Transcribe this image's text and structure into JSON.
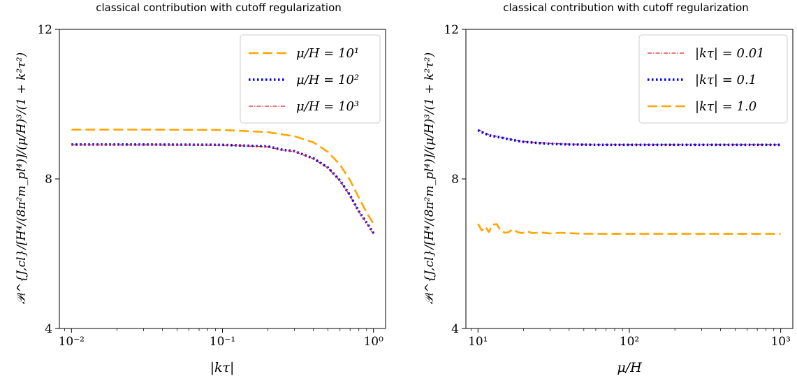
{
  "chart_data": [
    {
      "type": "line",
      "title": "classical contribution with cutoff regularization",
      "xlabel": "|kτ|",
      "ylabel": "𝒫ₜ^{J,cl}/[H⁴/(8π²m_pl⁴)]/(μ/H)³/(1 + k²τ²)",
      "xscale": "log",
      "xlim": [
        0.01,
        1.0
      ],
      "ylim": [
        4,
        12
      ],
      "xticks": [
        {
          "value": 0.01,
          "label": "10⁻²"
        },
        {
          "value": 0.1,
          "label": "10⁻¹"
        },
        {
          "value": 1,
          "label": "10⁰"
        }
      ],
      "yticks": [
        {
          "value": 4,
          "label": "4"
        },
        {
          "value": 8,
          "label": "8"
        },
        {
          "value": 12,
          "label": "12"
        }
      ],
      "legend_position": "top-right",
      "series": [
        {
          "name": "μ/H = 10¹",
          "color": "#FFA500",
          "style": "dashed",
          "x": [
            0.01,
            0.03,
            0.1,
            0.2,
            0.3,
            0.4,
            0.5,
            0.6,
            0.7,
            0.8,
            0.9,
            1.0
          ],
          "y": [
            9.32,
            9.32,
            9.31,
            9.25,
            9.14,
            8.98,
            8.72,
            8.38,
            7.96,
            7.5,
            7.1,
            6.8
          ]
        },
        {
          "name": "μ/H = 10²",
          "color": "#0000FF",
          "style": "dotted",
          "x": [
            0.01,
            0.03,
            0.1,
            0.2,
            0.25,
            0.3,
            0.4,
            0.5,
            0.6,
            0.7,
            0.8,
            0.9,
            1.0
          ],
          "y": [
            8.92,
            8.92,
            8.91,
            8.87,
            8.78,
            8.74,
            8.55,
            8.3,
            7.96,
            7.56,
            7.13,
            6.83,
            6.55
          ]
        },
        {
          "name": "μ/H = 10³",
          "color": "#D62728",
          "style": "dashdot",
          "x": [
            0.01,
            0.03,
            0.1,
            0.2,
            0.25,
            0.3,
            0.4,
            0.5,
            0.6,
            0.7,
            0.8,
            0.9,
            1.0
          ],
          "y": [
            8.91,
            8.91,
            8.9,
            8.86,
            8.77,
            8.73,
            8.54,
            8.29,
            7.95,
            7.55,
            7.12,
            6.82,
            6.52
          ]
        }
      ]
    },
    {
      "type": "line",
      "title": "classical contribution with cutoff regularization",
      "xlabel": "μ/H",
      "ylabel": "𝒫ₜ^{J,cl}/[H⁴/(8π²m_pl⁴)]/(μ/H)³/(1 + k²τ²)",
      "xscale": "log",
      "xlim": [
        10,
        1000
      ],
      "ylim": [
        4,
        12
      ],
      "xticks": [
        {
          "value": 10,
          "label": "10¹"
        },
        {
          "value": 100,
          "label": "10²"
        },
        {
          "value": 1000,
          "label": "10³"
        }
      ],
      "yticks": [
        {
          "value": 4,
          "label": "4"
        },
        {
          "value": 8,
          "label": "8"
        },
        {
          "value": 12,
          "label": "12"
        }
      ],
      "legend_position": "top-right",
      "series": [
        {
          "name": "|kτ| = 0.01",
          "color": "#D62728",
          "style": "dashdot",
          "x": [
            10,
            11,
            12,
            14,
            17,
            20,
            25,
            30,
            40,
            60,
            100,
            200,
            500,
            1000
          ],
          "y": [
            9.32,
            9.24,
            9.17,
            9.12,
            9.05,
            9.0,
            8.97,
            8.95,
            8.93,
            8.92,
            8.92,
            8.92,
            8.92,
            8.92
          ]
        },
        {
          "name": "|kτ| = 0.1",
          "color": "#0000FF",
          "style": "dotted",
          "x": [
            10,
            11,
            12,
            14,
            17,
            20,
            25,
            30,
            40,
            60,
            100,
            200,
            500,
            1000
          ],
          "y": [
            9.3,
            9.22,
            9.16,
            9.11,
            9.04,
            8.99,
            8.96,
            8.94,
            8.92,
            8.91,
            8.91,
            8.91,
            8.91,
            8.91
          ]
        },
        {
          "name": "|kτ| = 1.0",
          "color": "#FFA500",
          "style": "dashed",
          "x": [
            10,
            10.6,
            11.2,
            11.8,
            12.5,
            13.3,
            14.2,
            15.1,
            16,
            17,
            18.2,
            19.5,
            21,
            23,
            26,
            30,
            35,
            45,
            60,
            100,
            200,
            500,
            1000
          ],
          "y": [
            6.8,
            6.62,
            6.72,
            6.58,
            6.78,
            6.79,
            6.6,
            6.56,
            6.58,
            6.66,
            6.58,
            6.55,
            6.6,
            6.55,
            6.57,
            6.54,
            6.56,
            6.54,
            6.53,
            6.53,
            6.53,
            6.53,
            6.53
          ]
        }
      ]
    }
  ]
}
